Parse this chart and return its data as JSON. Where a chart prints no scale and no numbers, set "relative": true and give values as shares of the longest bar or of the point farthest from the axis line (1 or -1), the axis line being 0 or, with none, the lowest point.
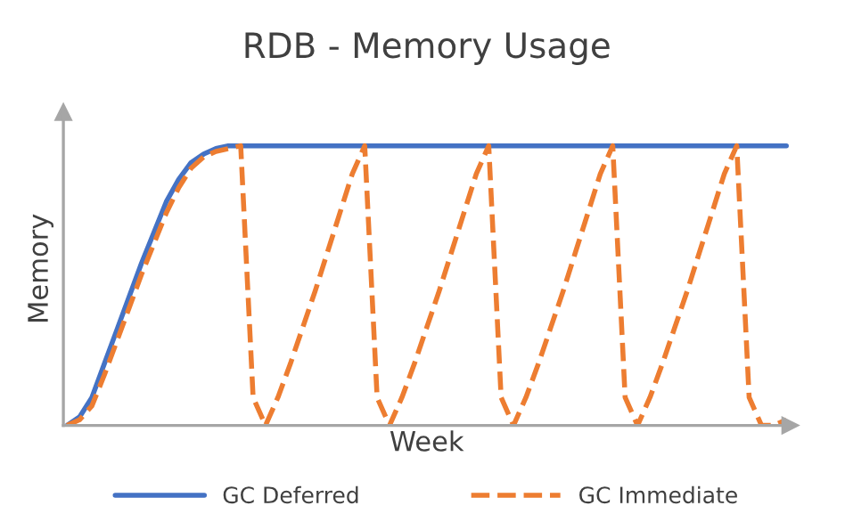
{
  "chart_data": {
    "type": "line",
    "title": "RDB - Memory Usage",
    "xlabel": "Week",
    "ylabel": "Memory",
    "relative": true,
    "grid": false,
    "legend": "bottom",
    "marker": "none",
    "categories": [
      null,
      null,
      null,
      null,
      null,
      null,
      null,
      null,
      null,
      null,
      null,
      null,
      null,
      null,
      null,
      null,
      null,
      null,
      null,
      null,
      null,
      null,
      null,
      null,
      null,
      null,
      null,
      null,
      null,
      null,
      null,
      null,
      null,
      null,
      null,
      null,
      null,
      null,
      null,
      null,
      null,
      null,
      null,
      null,
      null,
      null,
      null,
      null,
      null,
      null,
      null,
      null,
      null,
      null,
      null,
      null,
      null,
      null,
      null
    ],
    "series": [
      {
        "name": "GC Deferred",
        "color": "#4472c4",
        "line_style": "solid",
        "values": [
          0,
          0.03,
          0.1,
          0.22,
          0.34,
          0.46,
          0.58,
          0.69,
          0.8,
          0.88,
          0.94,
          0.97,
          0.99,
          1,
          1,
          1,
          1,
          1,
          1,
          1,
          1,
          1,
          1,
          1,
          1,
          1,
          1,
          1,
          1,
          1,
          1,
          1,
          1,
          1,
          1,
          1,
          1,
          1,
          1,
          1,
          1,
          1,
          1,
          1,
          1,
          1,
          1,
          1,
          1,
          1,
          1,
          1,
          1,
          1,
          1,
          1,
          1,
          1,
          1
        ]
      },
      {
        "name": "GC Immediate",
        "color": "#ed7d31",
        "line_style": "dashed",
        "values": [
          0,
          0.02,
          0.07,
          0.18,
          0.3,
          0.42,
          0.54,
          0.65,
          0.76,
          0.85,
          0.92,
          0.96,
          0.98,
          0.99,
          1,
          0.1,
          0,
          0.1,
          0.22,
          0.35,
          0.48,
          0.62,
          0.76,
          0.9,
          1,
          0.1,
          0,
          0.1,
          0.22,
          0.35,
          0.48,
          0.62,
          0.76,
          0.9,
          1,
          0.1,
          0,
          0.1,
          0.22,
          0.35,
          0.48,
          0.62,
          0.76,
          0.9,
          1,
          0.1,
          0,
          0.1,
          0.22,
          0.35,
          0.48,
          0.62,
          0.76,
          0.9,
          1,
          0.1,
          0,
          0,
          0.02
        ]
      }
    ]
  }
}
